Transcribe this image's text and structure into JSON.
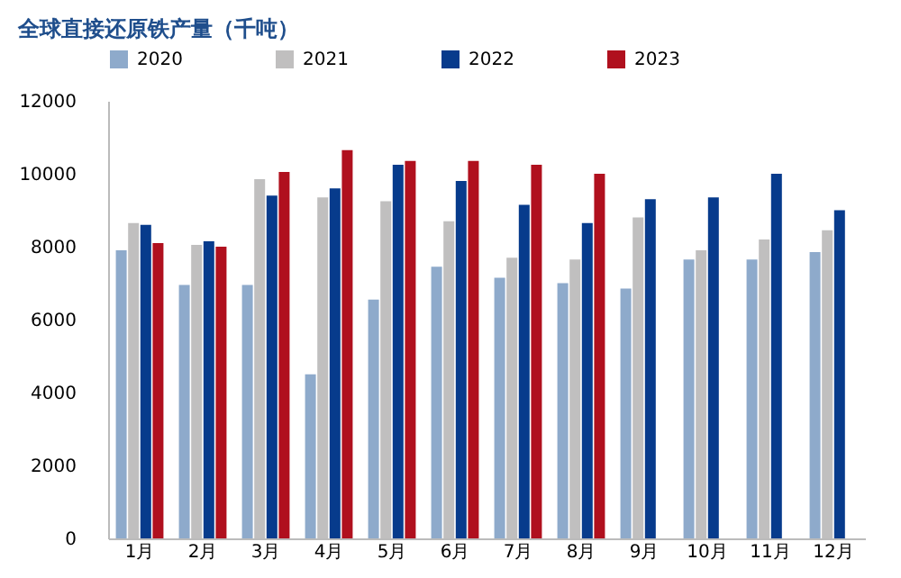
{
  "chart_data": {
    "type": "bar",
    "title": "全球直接还原铁产量（千吨）",
    "categories": [
      "1月",
      "2月",
      "3月",
      "4月",
      "5月",
      "6月",
      "7月",
      "8月",
      "9月",
      "10月",
      "11月",
      "12月"
    ],
    "series": [
      {
        "name": "2020",
        "color": "#8eaacb",
        "values": [
          7900,
          6950,
          6950,
          4500,
          6550,
          7450,
          7150,
          7000,
          6850,
          7650,
          7650,
          7850
        ]
      },
      {
        "name": "2021",
        "color": "#c0bfbf",
        "values": [
          8650,
          8050,
          9850,
          9350,
          9250,
          8700,
          7700,
          7650,
          8800,
          7900,
          8200,
          8450
        ]
      },
      {
        "name": "2022",
        "color": "#073b8c",
        "values": [
          8600,
          8150,
          9400,
          9600,
          10250,
          9800,
          9150,
          8650,
          9300,
          9350,
          10000,
          9000
        ]
      },
      {
        "name": "2023",
        "color": "#b0101e",
        "values": [
          8100,
          8000,
          10050,
          10650,
          10350,
          10350,
          10250,
          10000,
          null,
          null,
          null,
          null
        ]
      }
    ],
    "ylim": [
      0,
      12000
    ],
    "yticks": [
      0,
      2000,
      4000,
      6000,
      8000,
      10000,
      12000
    ],
    "grid": false,
    "legend": "top"
  }
}
